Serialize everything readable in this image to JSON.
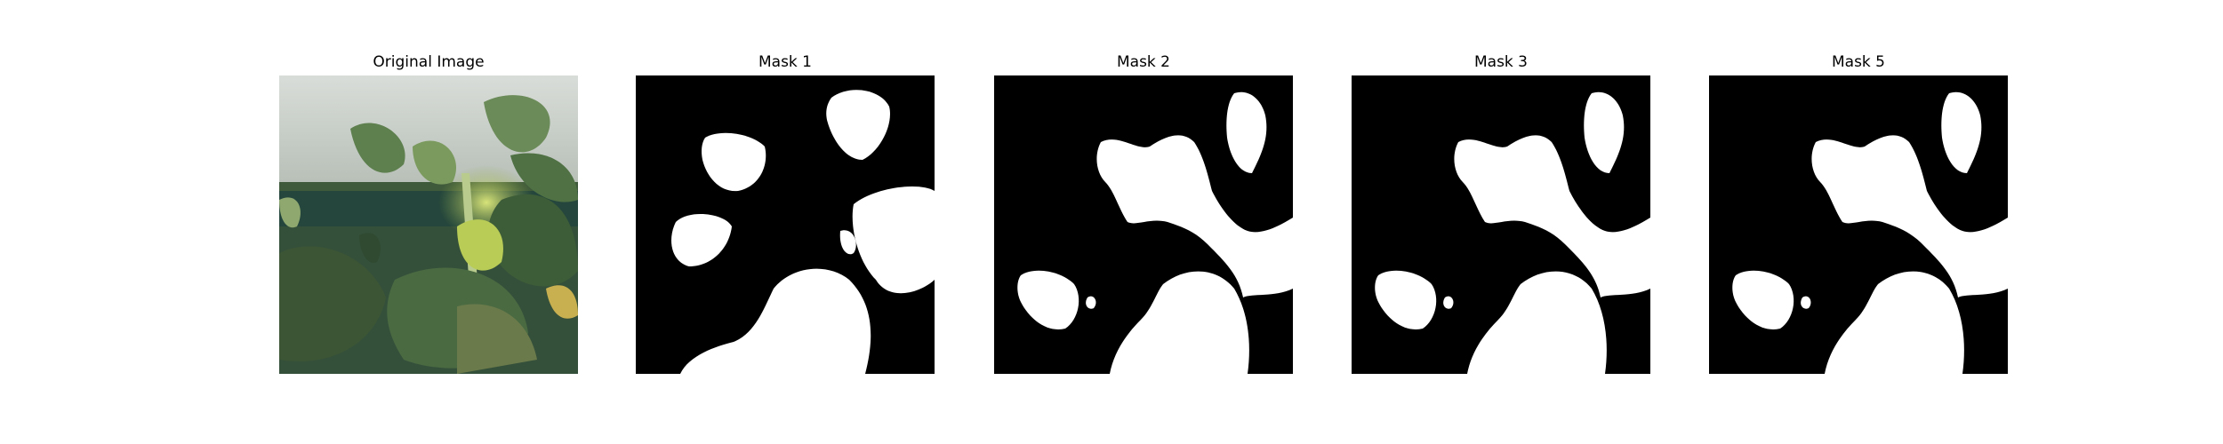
{
  "panels": [
    {
      "title": "Original Image"
    },
    {
      "title": "Mask 1"
    },
    {
      "title": "Mask 2"
    },
    {
      "title": "Mask 3"
    },
    {
      "title": "Mask 5"
    }
  ],
  "colors": {
    "background": "#ffffff",
    "mask_background": "#000000",
    "mask_foreground": "#ffffff"
  }
}
